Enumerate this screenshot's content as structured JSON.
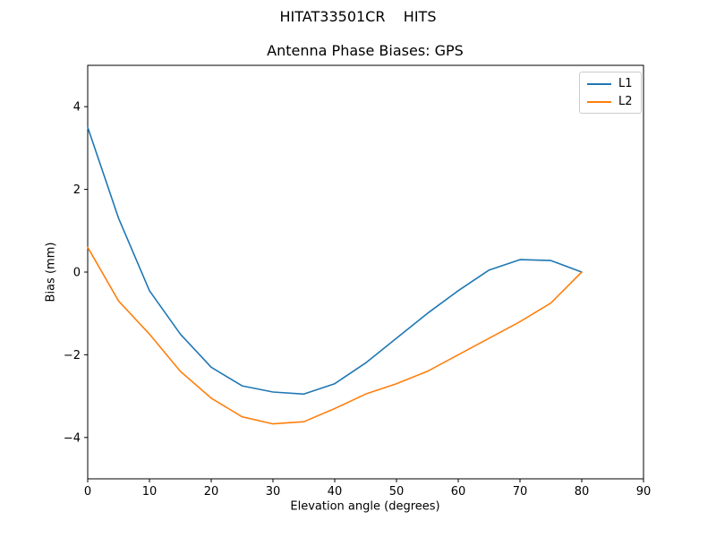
{
  "figure": {
    "suptitle": "HITAT33501CR    HITS"
  },
  "chart_data": {
    "type": "line",
    "title": "Antenna Phase Biases: GPS",
    "xlabel": "Elevation angle (degrees)",
    "ylabel": "Bias (mm)",
    "xlim": [
      0,
      90
    ],
    "ylim": [
      -5,
      5
    ],
    "xticks": [
      0,
      10,
      20,
      30,
      40,
      50,
      60,
      70,
      80,
      90
    ],
    "yticks": [
      -4,
      -2,
      0,
      2,
      4
    ],
    "grid": false,
    "legend_position": "upper right",
    "x": [
      0,
      5,
      10,
      15,
      20,
      25,
      30,
      35,
      40,
      45,
      50,
      55,
      60,
      65,
      70,
      75,
      80
    ],
    "series": [
      {
        "name": "L1",
        "color": "#1f77b4",
        "values": [
          3.5,
          1.3,
          -0.45,
          -1.5,
          -2.3,
          -2.75,
          -2.9,
          -2.95,
          -2.7,
          -2.2,
          -1.6,
          -1.0,
          -0.45,
          0.05,
          0.3,
          0.28,
          0.0
        ]
      },
      {
        "name": "L2",
        "color": "#ff7f0e",
        "values": [
          0.6,
          -0.7,
          -1.5,
          -2.4,
          -3.05,
          -3.5,
          -3.67,
          -3.62,
          -3.3,
          -2.95,
          -2.7,
          -2.4,
          -2.0,
          -1.6,
          -1.2,
          -0.75,
          0.0
        ]
      }
    ]
  }
}
